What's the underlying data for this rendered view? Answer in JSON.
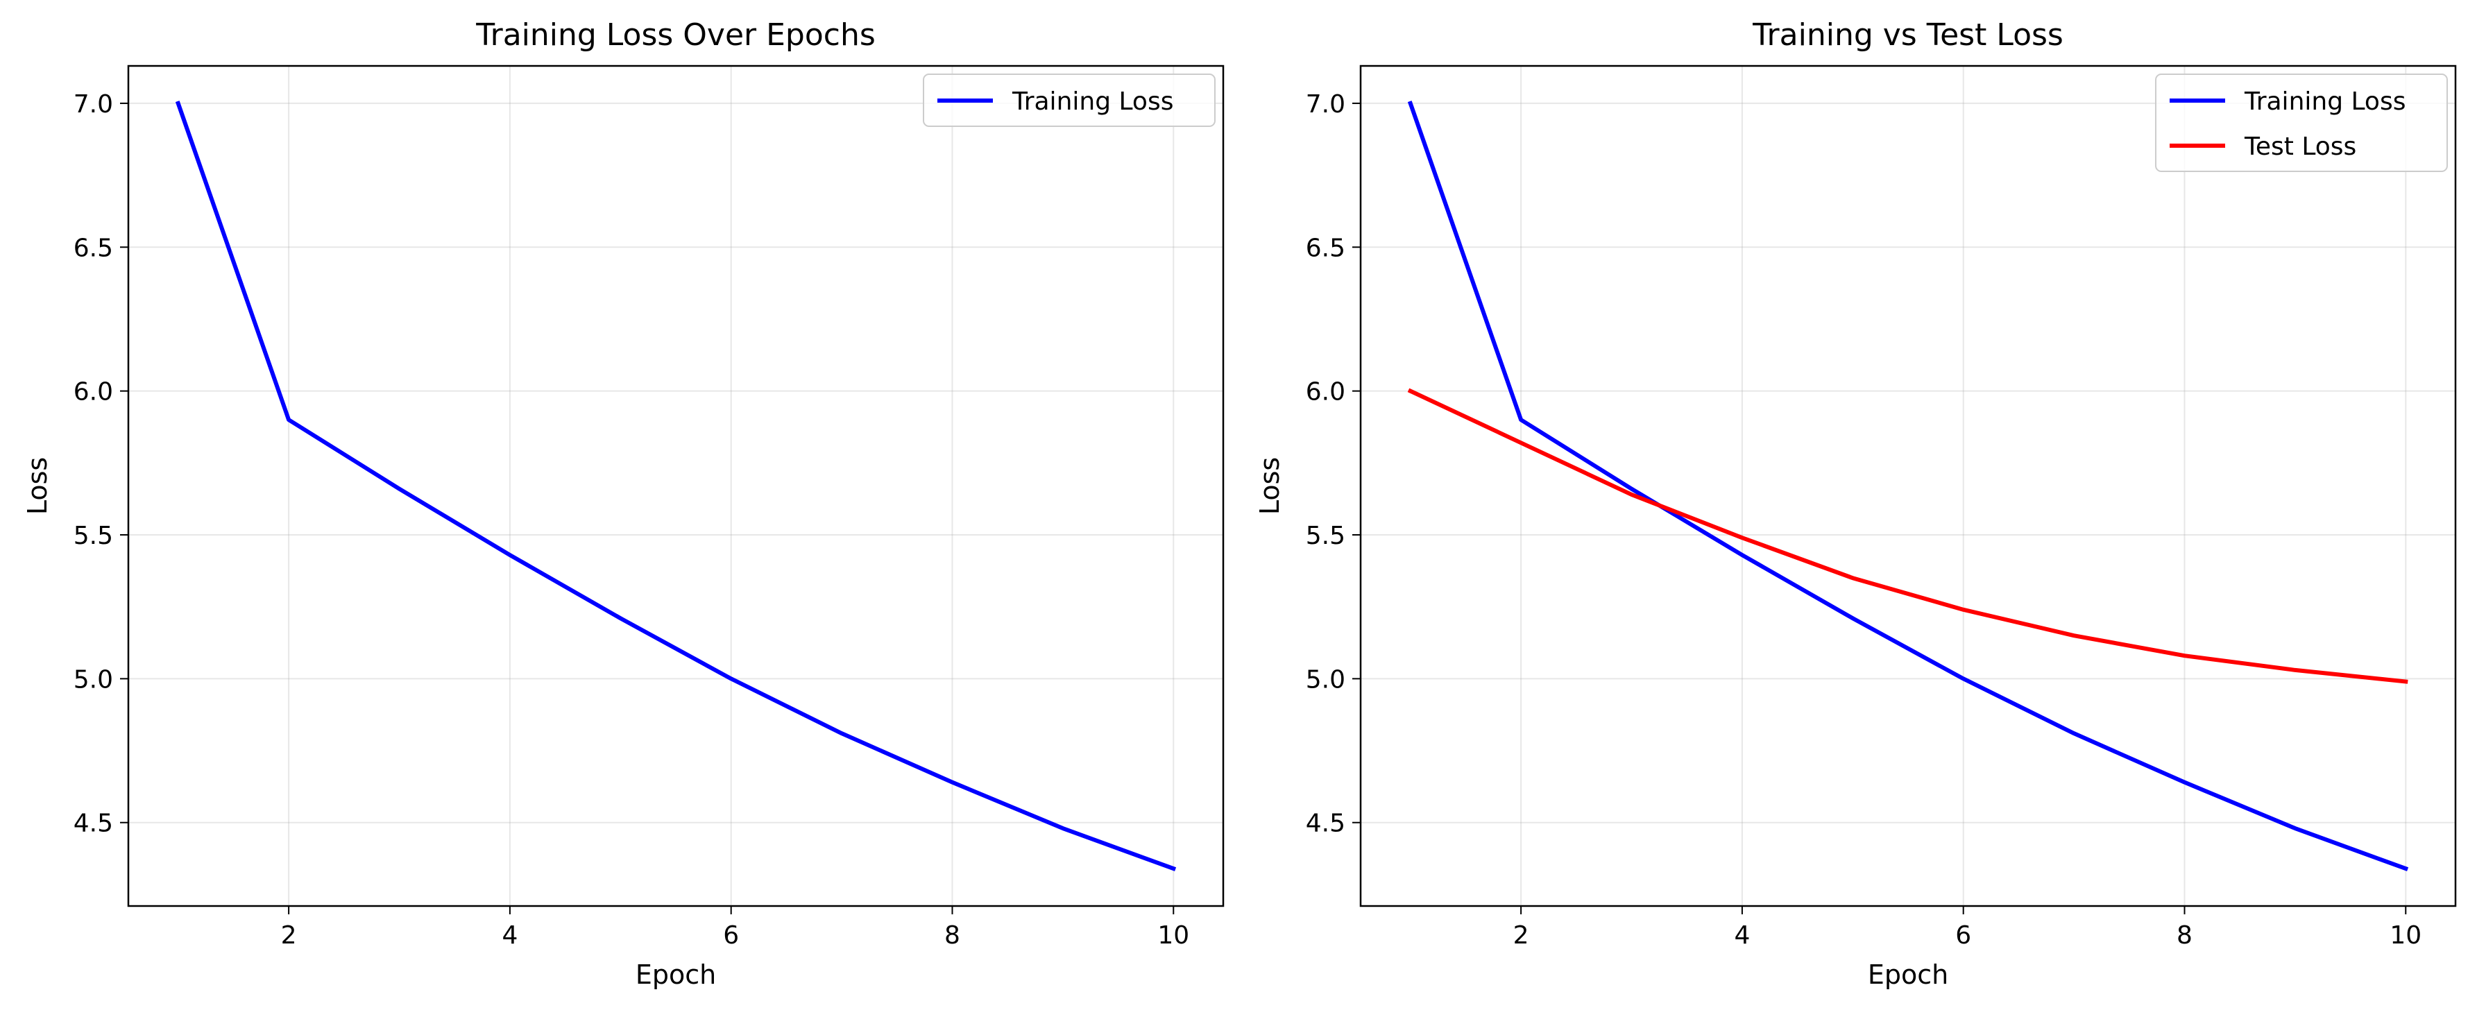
{
  "chart_data": [
    {
      "type": "line",
      "title": "Training Loss Over Epochs",
      "xlabel": "Epoch",
      "ylabel": "Loss",
      "xlim": [
        0.55,
        10.45
      ],
      "ylim": [
        4.21,
        7.13
      ],
      "xticks": [
        2,
        4,
        6,
        8,
        10
      ],
      "yticks": [
        4.5,
        5.0,
        5.5,
        6.0,
        6.5,
        7.0
      ],
      "xtick_labels": [
        "2",
        "4",
        "6",
        "8",
        "10"
      ],
      "ytick_labels": [
        "4.5",
        "5.0",
        "5.5",
        "6.0",
        "6.5",
        "7.0"
      ],
      "grid": true,
      "legend_position": "upper right",
      "x": [
        1,
        2,
        3,
        4,
        5,
        6,
        7,
        8,
        9,
        10
      ],
      "series": [
        {
          "name": "Training Loss",
          "color": "#0000ff",
          "values": [
            7.0,
            5.9,
            5.66,
            5.43,
            5.21,
            5.0,
            4.81,
            4.64,
            4.48,
            4.34
          ]
        }
      ]
    },
    {
      "type": "line",
      "title": "Training vs Test Loss",
      "xlabel": "Epoch",
      "ylabel": "Loss",
      "xlim": [
        0.55,
        10.45
      ],
      "ylim": [
        4.21,
        7.13
      ],
      "xticks": [
        2,
        4,
        6,
        8,
        10
      ],
      "yticks": [
        4.5,
        5.0,
        5.5,
        6.0,
        6.5,
        7.0
      ],
      "xtick_labels": [
        "2",
        "4",
        "6",
        "8",
        "10"
      ],
      "ytick_labels": [
        "4.5",
        "5.0",
        "5.5",
        "6.0",
        "6.5",
        "7.0"
      ],
      "grid": true,
      "legend_position": "upper right",
      "x": [
        1,
        2,
        3,
        4,
        5,
        6,
        7,
        8,
        9,
        10
      ],
      "series": [
        {
          "name": "Training Loss",
          "color": "#0000ff",
          "values": [
            7.0,
            5.9,
            5.66,
            5.43,
            5.21,
            5.0,
            4.81,
            4.64,
            4.48,
            4.34
          ]
        },
        {
          "name": "Test Loss",
          "color": "#ff0000",
          "values": [
            6.0,
            5.82,
            5.64,
            5.49,
            5.35,
            5.24,
            5.15,
            5.08,
            5.03,
            4.99
          ]
        }
      ]
    }
  ]
}
